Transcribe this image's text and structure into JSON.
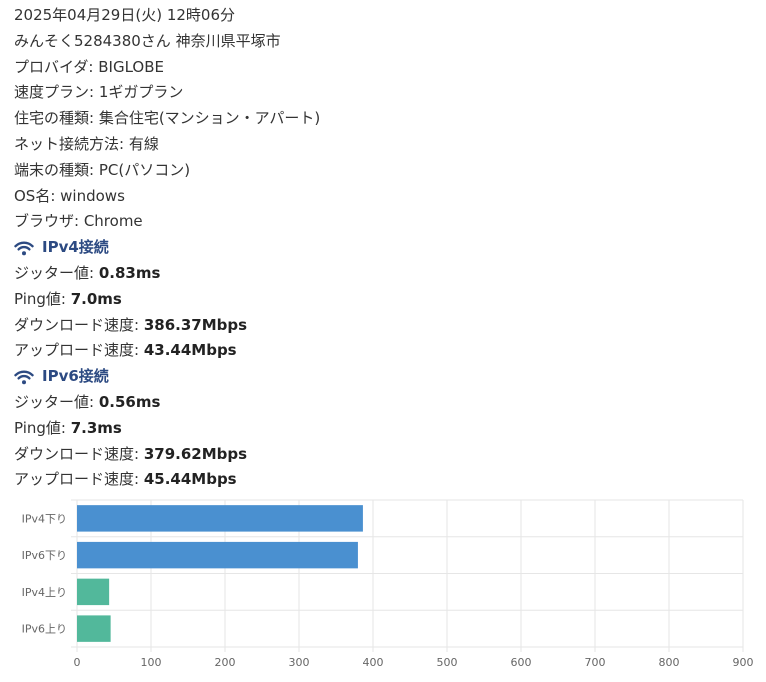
{
  "info": {
    "datetime": "2025年04月29日(火) 12時06分",
    "user_location": "みんそく5284380さん 神奈川県平塚市",
    "provider": {
      "label": "プロバイダ: ",
      "value": "BIGLOBE"
    },
    "plan": {
      "label": "速度プラン: ",
      "value": "1ギガプラン"
    },
    "housing": {
      "label": "住宅の種類: ",
      "value": "集合住宅(マンション・アパート)"
    },
    "connection": {
      "label": "ネット接続方法: ",
      "value": "有線"
    },
    "device": {
      "label": "端末の種類: ",
      "value": "PC(パソコン)"
    },
    "os": {
      "label": "OS名: ",
      "value": "windows"
    },
    "browser": {
      "label": "ブラウザ: ",
      "value": "Chrome"
    }
  },
  "ipv4": {
    "title": "IPv4接続",
    "jitter": {
      "label": "ジッター値: ",
      "value": "0.83ms"
    },
    "ping": {
      "label": "Ping値: ",
      "value": "7.0ms"
    },
    "download": {
      "label": "ダウンロード速度: ",
      "value": "386.37Mbps"
    },
    "upload": {
      "label": "アップロード速度: ",
      "value": "43.44Mbps"
    }
  },
  "ipv6": {
    "title": "IPv6接続",
    "jitter": {
      "label": "ジッター値: ",
      "value": "0.56ms"
    },
    "ping": {
      "label": "Ping値: ",
      "value": "7.3ms"
    },
    "download": {
      "label": "ダウンロード速度: ",
      "value": "379.62Mbps"
    },
    "upload": {
      "label": "アップロード速度: ",
      "value": "45.44Mbps"
    }
  },
  "colors": {
    "section_title": "#2c4a82",
    "download_bar": "#4a90d0",
    "upload_bar": "#52b89b",
    "grid": "#e6e6e6"
  },
  "icons": {
    "section_icon": "wifi-icon"
  },
  "chart_data": {
    "type": "bar",
    "orientation": "horizontal",
    "categories": [
      "IPv4下り",
      "IPv6下り",
      "IPv4上り",
      "IPv6上り"
    ],
    "values": [
      386.37,
      379.62,
      43.44,
      45.44
    ],
    "bar_colors": [
      "#4a90d0",
      "#4a90d0",
      "#52b89b",
      "#52b89b"
    ],
    "xlim": [
      0,
      900
    ],
    "xticks": [
      0,
      100,
      200,
      300,
      400,
      500,
      600,
      700,
      800,
      900
    ],
    "grid": true,
    "legend": "none",
    "title": "",
    "xlabel": "",
    "ylabel": ""
  }
}
